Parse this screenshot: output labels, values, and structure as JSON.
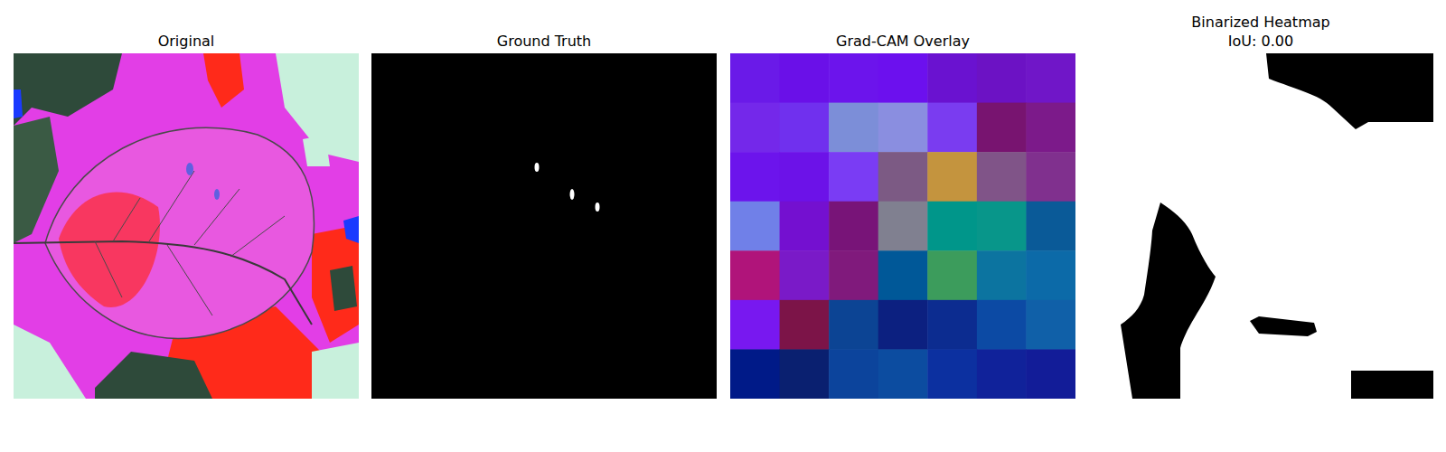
{
  "chart_data": [
    {
      "type": "image",
      "title": "Original"
    },
    {
      "type": "image",
      "title": "Ground Truth"
    },
    {
      "type": "heatmap",
      "title": "Grad-CAM Overlay",
      "colors": [
        [
          "#6a1ae8",
          "#6a10e8",
          "#6c14ec",
          "#6c10ee",
          "#6a12d0",
          "#6c12c4",
          "#7016c8"
        ],
        [
          "#7428ea",
          "#7030ee",
          "#7c8ed8",
          "#8a8ee0",
          "#7a3cf0",
          "#781470",
          "#7c1a8a"
        ],
        [
          "#6c14ec",
          "#6c12e8",
          "#7a3cf4",
          "#7c5a84",
          "#c4943e",
          "#805488",
          "#80308e"
        ],
        [
          "#7080e8",
          "#7410d0",
          "#781478",
          "#808090",
          "#00968a",
          "#08968a",
          "#0a5a98"
        ],
        [
          "#b0147a",
          "#7a1ac8",
          "#801a7c",
          "#005898",
          "#3c9c5c",
          "#0c74a0",
          "#0c6aa8"
        ],
        [
          "#7818f0",
          "#7c1448",
          "#0c4494",
          "#0c2080",
          "#0c2c90",
          "#0c4aa4",
          "#1060a8"
        ],
        [
          "#001a88",
          "#0a2070",
          "#0c449c",
          "#0c4ca0",
          "#0c30a0",
          "#10229a",
          "#121c98"
        ]
      ]
    },
    {
      "type": "image",
      "title": "Binarized Heatmap\nIoU: 0.00"
    }
  ]
}
